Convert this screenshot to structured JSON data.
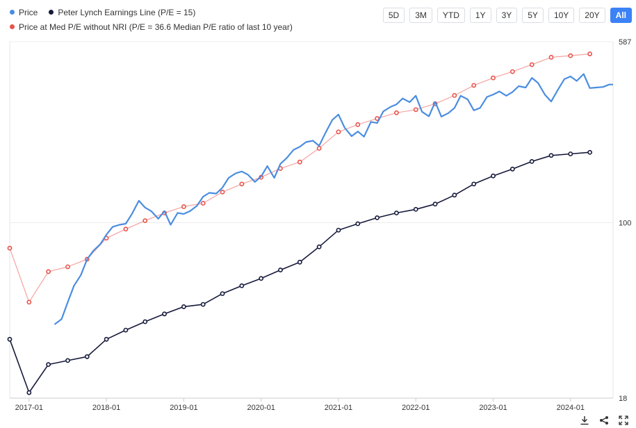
{
  "legend": {
    "price": "Price",
    "lynch": "Peter Lynch Earnings Line (P/E = 15)",
    "median": "Price at Med P/E without NRI (P/E = 36.6 Median P/E ratio of last 10 year)"
  },
  "ranges": [
    "5D",
    "3M",
    "YTD",
    "1Y",
    "3Y",
    "5Y",
    "10Y",
    "20Y",
    "All"
  ],
  "active_range": "All",
  "colors": {
    "price": "#4a8de0",
    "lynch": "#15193a",
    "median": "#e8524a",
    "median_line": "#f4a3a0"
  },
  "toolbar": {
    "download": "download-icon",
    "share": "share-icon",
    "expand": "expand-icon"
  },
  "chart_data": {
    "type": "line",
    "y_scale": "log",
    "ylim": [
      18,
      587
    ],
    "y_ticks": [
      "587",
      "100",
      "18"
    ],
    "x_ticks": [
      "2017-01",
      "2018-01",
      "2019-01",
      "2020-01",
      "2021-01",
      "2022-01",
      "2023-01",
      "2024-01"
    ],
    "xlim": [
      2016.75,
      2024.55
    ],
    "series": [
      {
        "name": "Price",
        "markers": false,
        "x": [
          2017.33,
          2017.42,
          2017.5,
          2017.58,
          2017.67,
          2017.75,
          2017.83,
          2017.92,
          2018.0,
          2018.08,
          2018.17,
          2018.25,
          2018.33,
          2018.42,
          2018.5,
          2018.58,
          2018.67,
          2018.75,
          2018.83,
          2018.92,
          2019.0,
          2019.08,
          2019.17,
          2019.25,
          2019.33,
          2019.42,
          2019.5,
          2019.58,
          2019.67,
          2019.75,
          2019.83,
          2019.92,
          2020.0,
          2020.08,
          2020.17,
          2020.25,
          2020.33,
          2020.42,
          2020.5,
          2020.58,
          2020.67,
          2020.75,
          2020.83,
          2020.92,
          2021.0,
          2021.08,
          2021.17,
          2021.25,
          2021.33,
          2021.42,
          2021.5,
          2021.58,
          2021.67,
          2021.75,
          2021.83,
          2021.92,
          2022.0,
          2022.08,
          2022.17,
          2022.25,
          2022.33,
          2022.42,
          2022.5,
          2022.58,
          2022.67,
          2022.75,
          2022.83,
          2022.92,
          2023.0,
          2023.08,
          2023.17,
          2023.25,
          2023.33,
          2023.42,
          2023.5,
          2023.58,
          2023.67,
          2023.75,
          2023.83,
          2023.92,
          2024.0,
          2024.08,
          2024.17,
          2024.25,
          2024.33,
          2024.42,
          2024.5,
          2024.55
        ],
        "y": [
          37,
          39,
          46,
          54,
          60,
          70,
          76,
          81,
          89,
          96,
          98,
          99,
          109,
          124,
          116,
          112,
          104,
          112,
          98,
          110,
          109,
          112,
          118,
          129,
          134,
          133,
          141,
          155,
          162,
          165,
          160,
          149,
          157,
          174,
          155,
          178,
          188,
          204,
          210,
          220,
          223,
          212,
          240,
          273,
          288,
          253,
          233,
          244,
          232,
          268,
          265,
          297,
          310,
          318,
          337,
          325,
          346,
          296,
          283,
          326,
          282,
          292,
          307,
          346,
          334,
          300,
          307,
          342,
          350,
          361,
          346,
          359,
          380,
          375,
          412,
          392,
          349,
          327,
          364,
          407,
          418,
          400,
          428,
          373,
          375,
          377,
          386,
          386
        ]
      },
      {
        "name": "Peter Lynch Earnings Line (P/E = 15)",
        "markers": true,
        "x": [
          2016.75,
          2017.0,
          2017.25,
          2017.5,
          2017.75,
          2018.0,
          2018.25,
          2018.5,
          2018.75,
          2019.0,
          2019.25,
          2019.5,
          2019.75,
          2020.0,
          2020.25,
          2020.5,
          2020.75,
          2021.0,
          2021.25,
          2021.5,
          2021.75,
          2022.0,
          2022.25,
          2022.5,
          2022.75,
          2023.0,
          2023.25,
          2023.5,
          2023.75,
          2024.0,
          2024.25
        ],
        "y": [
          32,
          19,
          25,
          26,
          27,
          32,
          35,
          38,
          41,
          44,
          45,
          50,
          54,
          58,
          63,
          68,
          79,
          93,
          99,
          105,
          110,
          114,
          120,
          131,
          146,
          158,
          169,
          182,
          193,
          196,
          199
        ]
      },
      {
        "name": "Price at Med P/E without NRI (P/E = 36.6 Median P/E ratio of last 10 year)",
        "markers": true,
        "x": [
          2016.75,
          2017.0,
          2017.25,
          2017.5,
          2017.75,
          2018.0,
          2018.25,
          2018.5,
          2018.75,
          2019.0,
          2019.25,
          2019.5,
          2019.75,
          2020.0,
          2020.25,
          2020.5,
          2020.75,
          2021.0,
          2021.25,
          2021.5,
          2021.75,
          2022.0,
          2022.25,
          2022.5,
          2022.75,
          2023.0,
          2023.25,
          2023.5,
          2023.75,
          2024.0,
          2024.25
        ],
        "y": [
          78,
          46,
          62,
          65,
          70,
          86,
          94,
          102,
          110,
          117,
          121,
          135,
          146,
          156,
          170,
          181,
          207,
          243,
          261,
          277,
          293,
          302,
          320,
          347,
          383,
          412,
          438,
          469,
          504,
          512,
          521
        ]
      }
    ]
  }
}
